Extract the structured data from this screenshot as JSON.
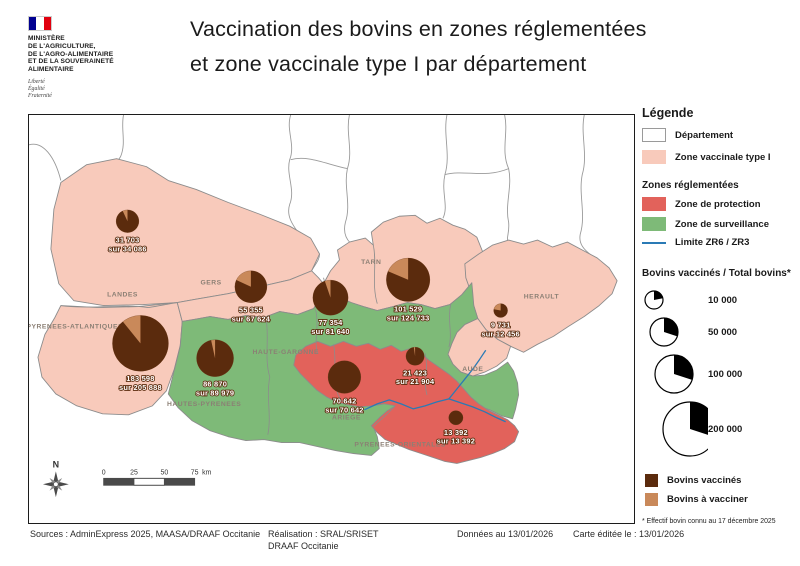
{
  "header": {
    "logo": {
      "ministry_lines": [
        "MINISTÈRE",
        "DE L'AGRICULTURE,",
        "DE L'AGRO-ALIMENTAIRE",
        "ET DE LA SOUVERAINETÉ",
        "ALIMENTAIRE"
      ],
      "motto_lines": [
        "Liberté",
        "Égalité",
        "Fraternité"
      ]
    },
    "title_line1": "Vaccination  des bovins en zones réglementées",
    "title_line2": "et zone vaccinale type I par département"
  },
  "legend": {
    "title": "Légende",
    "departement_label": "Département",
    "zone_vaccinale_label": "Zone vaccinale type I",
    "zones_reglementees_header": "Zones réglementées",
    "zone_protection_label": "Zone de protection",
    "zone_surveillance_label": "Zone de surveillance",
    "limite_label": "Limite ZR6 / ZR3",
    "size_legend": {
      "title": "Bovins vaccinés / Total bovins*",
      "classes": [
        {
          "label": "10 000",
          "value": 10000
        },
        {
          "label": "50 000",
          "value": 50000
        },
        {
          "label": "100 000",
          "value": 100000
        },
        {
          "label": "200 000",
          "value": 200000
        }
      ]
    },
    "bovins_vaccines_label": "Bovins vaccinés",
    "bovins_a_vacciner_label": "Bovins à vacciner",
    "footnote": "* Effectif bovin connu au 17 décembre 2025"
  },
  "map": {
    "compass_label": "N",
    "scalebar": {
      "ticks": [
        "0",
        "25",
        "50",
        "75"
      ],
      "unit": "km"
    },
    "department_labels": [
      "LANDES",
      "PYRENEES-ATLANTIQUES",
      "GERS",
      "HAUTES-PYRENEES",
      "TARN",
      "HAUTE-GARONNE",
      "HERAULT",
      "AUDE",
      "ARIEGE",
      "PYRENEES-ORIENTALES"
    ],
    "pies": [
      {
        "area": "Landes",
        "vaccinated": 31703,
        "total": 34086,
        "vaccinated_label": "31 703",
        "total_label": "sur 34 086"
      },
      {
        "area": "Gers",
        "vaccinated": 55355,
        "total": 67624,
        "vaccinated_label": "55 355",
        "total_label": "sur 67 624"
      },
      {
        "area": "Tarn-et-Garonne",
        "vaccinated": 77354,
        "total": 81640,
        "vaccinated_label": "77 354",
        "total_label": "sur 81 640"
      },
      {
        "area": "Tarn",
        "vaccinated": 101529,
        "total": 124733,
        "vaccinated_label": "101 529",
        "total_label": "sur 124 733"
      },
      {
        "area": "Hérault",
        "vaccinated": 9731,
        "total": 12456,
        "vaccinated_label": "9 731",
        "total_label": "sur 12 456"
      },
      {
        "area": "Pyrénées-Atlantiques",
        "vaccinated": 183598,
        "total": 205888,
        "vaccinated_label": "183 598",
        "total_label": "sur 205 888"
      },
      {
        "area": "Hautes-Pyrénées",
        "vaccinated": 86870,
        "total": 89979,
        "vaccinated_label": "86 870",
        "total_label": "sur 89 979"
      },
      {
        "area": "Haute-Garonne / Ariège",
        "vaccinated": 70642,
        "total": 70642,
        "vaccinated_label": "70 642",
        "total_label": "sur 70 642"
      },
      {
        "area": "Aude",
        "vaccinated": 21423,
        "total": 21904,
        "vaccinated_label": "21 423",
        "total_label": "sur 21 904"
      },
      {
        "area": "Pyrénées-Orientales",
        "vaccinated": 13392,
        "total": 13392,
        "vaccinated_label": "13 392",
        "total_label": "sur 13 392"
      }
    ]
  },
  "footer": {
    "sources": "Sources : AdminExpress 2025, MAASA/DRAAF Occitanie",
    "realisation_line1": "Réalisation : SRAL/SRISET",
    "realisation_line2": "DRAAF Occitanie",
    "data_date": "Données au 13/01/2026",
    "edited": "Carte éditée le :  13/01/2026"
  },
  "colors": {
    "zone_vaccinale": "#f8cabb",
    "zone_protection": "#e2625b",
    "zone_surveillance": "#7eba78",
    "limite_zr": "#2a7ab5",
    "bovins_vaccines": "#5b2b0d",
    "bovins_a_vacciner": "#c9895a",
    "department_border": "#8c8c8c"
  }
}
